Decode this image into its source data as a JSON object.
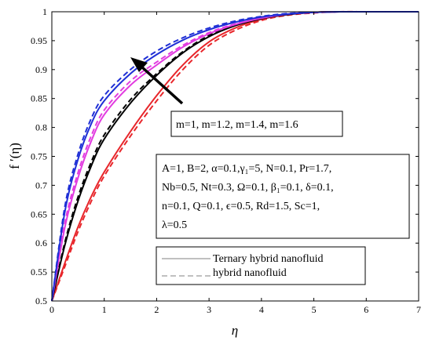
{
  "chart_data": {
    "type": "line",
    "xlabel": "η",
    "ylabel": "f ′(η)",
    "xlim": [
      0,
      7
    ],
    "ylim": [
      0.5,
      1
    ],
    "xticks": [
      "0",
      "1",
      "2",
      "3",
      "4",
      "5",
      "6",
      "7"
    ],
    "yticks": [
      "0.5",
      "0.55",
      "0.6",
      "0.65",
      "0.7",
      "0.75",
      "0.8",
      "0.85",
      "0.9",
      "0.95",
      "1"
    ],
    "grid": false,
    "curve_label": "m=1, m=1.2, m=1.4, m=1.6",
    "arrow_direction": "increasing m",
    "parameters": [
      "A=1, B=2, α=0.1,γ₁=5, N=0.1, Pr=1.7,",
      "Nb=0.5, Nt=0.3, Ω=0.1, β₁=0.1, δ=0.1,",
      "n=0.1, Q=0.1, ϵ=0.5, Rd=1.5, Sc=1,",
      "λ=0.5"
    ],
    "legend": {
      "position": "bottom-right",
      "entries": [
        {
          "label": "Ternary hybrid nanofluid",
          "style": "solid"
        },
        {
          "label": "hybrid nanofluid",
          "style": "dashed"
        }
      ]
    },
    "x": [
      0,
      0.25,
      0.5,
      0.75,
      1,
      1.5,
      2,
      2.5,
      3,
      3.5,
      4,
      4.5,
      5,
      5.5,
      6,
      6.5,
      7
    ],
    "series": [
      {
        "m": "1",
        "color": "#e8262b",
        "style": "solid",
        "values": [
          0.5,
          0.566,
          0.628,
          0.68,
          0.723,
          0.793,
          0.855,
          0.908,
          0.948,
          0.972,
          0.987,
          0.995,
          0.999,
          1.0,
          1.0,
          1.0,
          1.0
        ]
      },
      {
        "m": "1",
        "color": "#e8262b",
        "style": "dashed",
        "values": [
          0.5,
          0.56,
          0.62,
          0.672,
          0.716,
          0.785,
          0.846,
          0.9,
          0.942,
          0.968,
          0.985,
          0.994,
          0.998,
          1.0,
          1.0,
          1.0,
          1.0
        ]
      },
      {
        "m": "1.2",
        "color": "#000000",
        "style": "solid",
        "values": [
          0.5,
          0.597,
          0.673,
          0.733,
          0.78,
          0.842,
          0.89,
          0.929,
          0.957,
          0.976,
          0.988,
          0.995,
          0.999,
          1.0,
          1.0,
          1.0,
          1.0
        ]
      },
      {
        "m": "1.2",
        "color": "#000000",
        "style": "dashed",
        "values": [
          0.5,
          0.602,
          0.68,
          0.74,
          0.787,
          0.848,
          0.893,
          0.931,
          0.959,
          0.977,
          0.989,
          0.996,
          0.999,
          1.0,
          1.0,
          1.0,
          1.0
        ]
      },
      {
        "m": "1.4",
        "color": "#e23ce0",
        "style": "solid",
        "values": [
          0.5,
          0.628,
          0.713,
          0.776,
          0.822,
          0.873,
          0.908,
          0.939,
          0.962,
          0.978,
          0.989,
          0.996,
          0.999,
          1.0,
          1.0,
          1.0,
          1.0
        ]
      },
      {
        "m": "1.4",
        "color": "#e23ce0",
        "style": "dashed",
        "values": [
          0.5,
          0.636,
          0.722,
          0.785,
          0.83,
          0.88,
          0.913,
          0.942,
          0.964,
          0.979,
          0.99,
          0.996,
          0.999,
          1.0,
          1.0,
          1.0,
          1.0
        ]
      },
      {
        "m": "1.6",
        "color": "#1f2fd6",
        "style": "solid",
        "values": [
          0.5,
          0.655,
          0.745,
          0.806,
          0.846,
          0.893,
          0.926,
          0.951,
          0.969,
          0.982,
          0.991,
          0.996,
          0.999,
          1.0,
          1.0,
          1.0,
          1.0
        ]
      },
      {
        "m": "1.6",
        "color": "#1f2fd6",
        "style": "dashed",
        "values": [
          0.5,
          0.664,
          0.754,
          0.815,
          0.855,
          0.9,
          0.932,
          0.955,
          0.972,
          0.984,
          0.992,
          0.997,
          0.999,
          1.0,
          1.0,
          1.0,
          1.0
        ]
      }
    ]
  }
}
